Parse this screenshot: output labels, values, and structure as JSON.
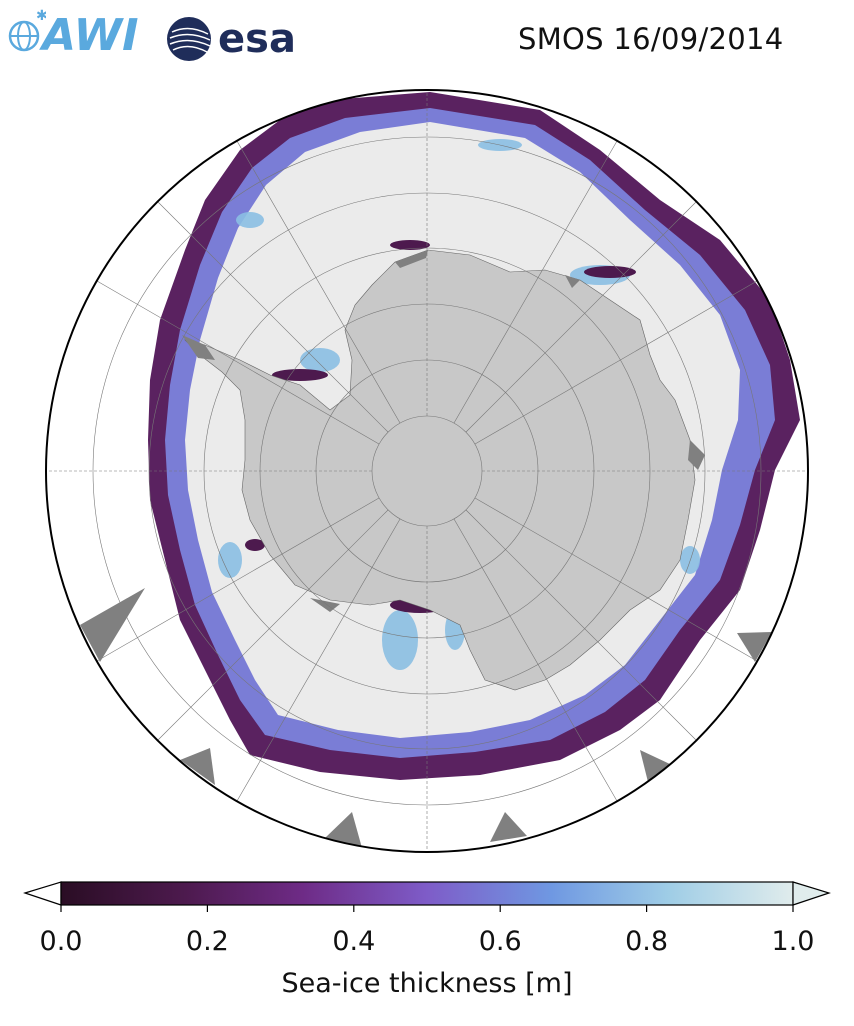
{
  "header": {
    "title": "SMOS 16/09/2014",
    "logos": [
      {
        "name": "AWI",
        "text": "AWI",
        "color": "#5aa9de"
      },
      {
        "name": "esa",
        "text": "esa",
        "color": "#1f2d5a"
      }
    ]
  },
  "map": {
    "projection": "south-polar-stereographic",
    "variable": "sea-ice thickness",
    "colors": {
      "land": "#c8c8c8",
      "ice_shelf": "#808080",
      "thick_ice": "#ebebeb",
      "ocean": "#ffffff",
      "graticule": "#777777"
    }
  },
  "colorbar": {
    "label": "Sea-ice thickness [m]",
    "min": 0.0,
    "max": 1.0,
    "extend": "both",
    "ticks": [
      "0.0",
      "0.2",
      "0.4",
      "0.6",
      "0.8",
      "1.0"
    ],
    "colormap": [
      "#2a0d24",
      "#4d1a4e",
      "#6e2b86",
      "#7e5cc8",
      "#6f98e2",
      "#9fcde6",
      "#e0ecec"
    ]
  }
}
